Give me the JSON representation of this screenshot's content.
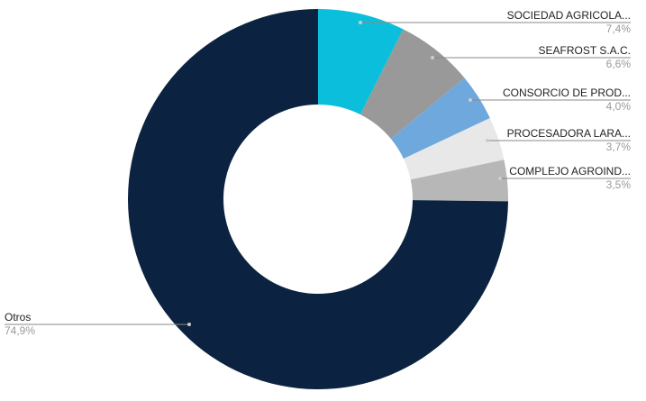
{
  "chart_data": {
    "type": "donut",
    "categories": [
      "SOCIEDAD AGRICOLA...",
      "SEAFROST S.A.C.",
      "CONSORCIO DE PROD...",
      "PROCESADORA LARA...",
      "COMPLEJO AGROIND...",
      "Otros"
    ],
    "values": [
      7.4,
      6.6,
      4.0,
      3.7,
      3.5,
      74.9
    ],
    "value_labels": [
      "7,4%",
      "6,6%",
      "4,0%",
      "3,7%",
      "3,5%",
      "74,9%"
    ],
    "colors": [
      "#0bbfdc",
      "#999999",
      "#6fa8dc",
      "#e8e8e8",
      "#b7b7b7",
      "#0b2340"
    ]
  }
}
